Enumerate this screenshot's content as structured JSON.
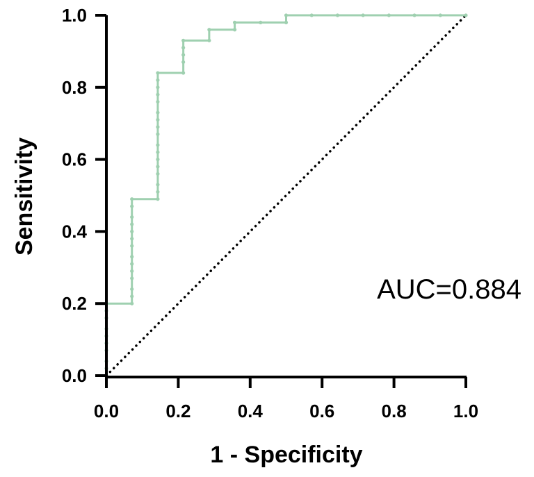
{
  "chart_data": {
    "type": "line",
    "xlabel": "1 - Specificity",
    "ylabel": "Sensitivity",
    "xlim": [
      0.0,
      1.0
    ],
    "ylim": [
      0.0,
      1.0
    ],
    "x_ticks": [
      "0.0",
      "0.2",
      "0.4",
      "0.6",
      "0.8",
      "1.0"
    ],
    "y_ticks": [
      "0.0",
      "0.2",
      "0.4",
      "0.6",
      "0.8",
      "1.0"
    ],
    "grid": false,
    "annotation": "AUC=0.884",
    "series": [
      {
        "style": "solid",
        "color": "#9fd0b0",
        "marker_points": [
          [
            0.0,
            0.0
          ],
          [
            0.0,
            0.02
          ],
          [
            0.0,
            0.04
          ],
          [
            0.0,
            0.07
          ],
          [
            0.0,
            0.09
          ],
          [
            0.0,
            0.11
          ],
          [
            0.0,
            0.13
          ],
          [
            0.0,
            0.16
          ],
          [
            0.0,
            0.18
          ],
          [
            0.0,
            0.2
          ],
          [
            0.071,
            0.2
          ],
          [
            0.071,
            0.22
          ],
          [
            0.071,
            0.24
          ],
          [
            0.071,
            0.27
          ],
          [
            0.071,
            0.29
          ],
          [
            0.071,
            0.31
          ],
          [
            0.071,
            0.33
          ],
          [
            0.071,
            0.36
          ],
          [
            0.071,
            0.38
          ],
          [
            0.071,
            0.4
          ],
          [
            0.071,
            0.42
          ],
          [
            0.071,
            0.44
          ],
          [
            0.071,
            0.47
          ],
          [
            0.071,
            0.49
          ],
          [
            0.143,
            0.49
          ],
          [
            0.143,
            0.51
          ],
          [
            0.143,
            0.53
          ],
          [
            0.143,
            0.56
          ],
          [
            0.143,
            0.58
          ],
          [
            0.143,
            0.6
          ],
          [
            0.143,
            0.62
          ],
          [
            0.143,
            0.64
          ],
          [
            0.143,
            0.67
          ],
          [
            0.143,
            0.69
          ],
          [
            0.143,
            0.71
          ],
          [
            0.143,
            0.73
          ],
          [
            0.143,
            0.76
          ],
          [
            0.143,
            0.78
          ],
          [
            0.143,
            0.8
          ],
          [
            0.143,
            0.82
          ],
          [
            0.143,
            0.84
          ],
          [
            0.214,
            0.84
          ],
          [
            0.214,
            0.87
          ],
          [
            0.214,
            0.89
          ],
          [
            0.214,
            0.91
          ],
          [
            0.214,
            0.93
          ],
          [
            0.286,
            0.93
          ],
          [
            0.286,
            0.96
          ],
          [
            0.357,
            0.96
          ],
          [
            0.357,
            0.98
          ],
          [
            0.429,
            0.98
          ],
          [
            0.5,
            0.98
          ],
          [
            0.5,
            1.0
          ],
          [
            0.571,
            1.0
          ],
          [
            0.643,
            1.0
          ],
          [
            0.714,
            1.0
          ],
          [
            0.786,
            1.0
          ],
          [
            0.857,
            1.0
          ],
          [
            0.929,
            1.0
          ],
          [
            1.0,
            1.0
          ]
        ]
      },
      {
        "style": "dotted",
        "color": "#000000",
        "points": [
          [
            0.0,
            0.0
          ],
          [
            1.0,
            1.0
          ]
        ]
      }
    ]
  }
}
